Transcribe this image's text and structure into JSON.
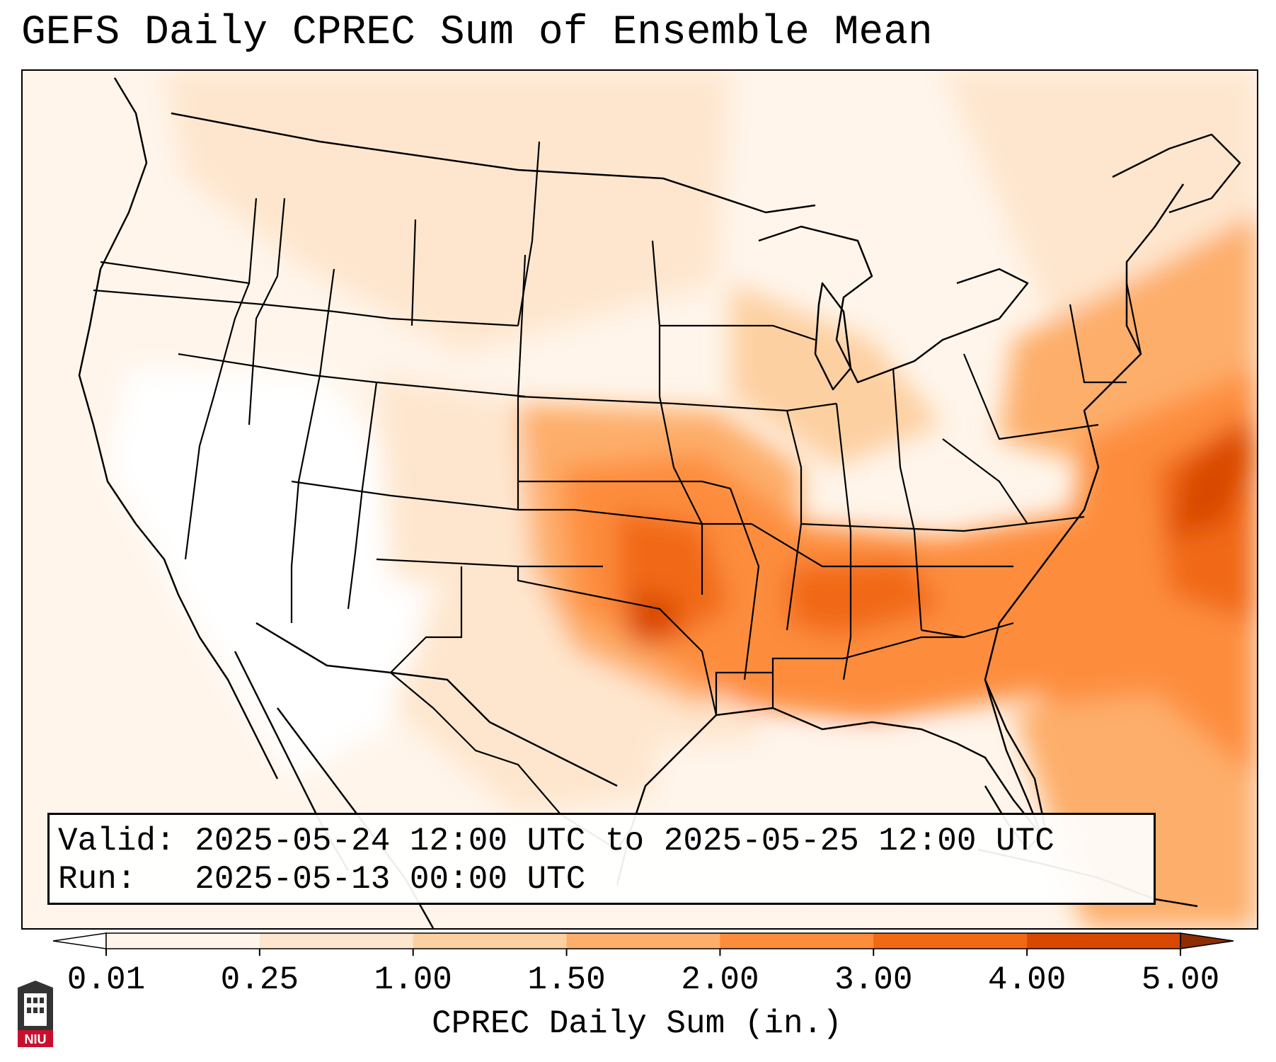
{
  "title": "GEFS Daily CPREC Sum of Ensemble Mean",
  "info": {
    "valid_label": "Valid:",
    "valid_value": "2025-05-24 12:00 UTC to 2025-05-25 12:00 UTC",
    "run_label": "Run:",
    "run_value": "2025-05-13 00:00 UTC"
  },
  "colorbar": {
    "label": "CPREC Daily Sum (in.)",
    "ticks": [
      "0.01",
      "0.25",
      "1.00",
      "1.50",
      "2.00",
      "3.00",
      "4.00",
      "5.00"
    ],
    "colors": [
      "#fff5eb",
      "#fee6ce",
      "#fdd0a2",
      "#fdae6b",
      "#fd8d3c",
      "#f16913",
      "#d94801",
      "#8c2d04"
    ],
    "extend_under_color": "#ffffff",
    "extend_over_color": "#8c2d04"
  },
  "logo": {
    "text": "NIU",
    "accent": "#c8102e"
  },
  "map": {
    "projection": "Lambert Conformal",
    "region": "Contiguous United States",
    "boundaries": [
      "state",
      "country",
      "coastline"
    ]
  }
}
